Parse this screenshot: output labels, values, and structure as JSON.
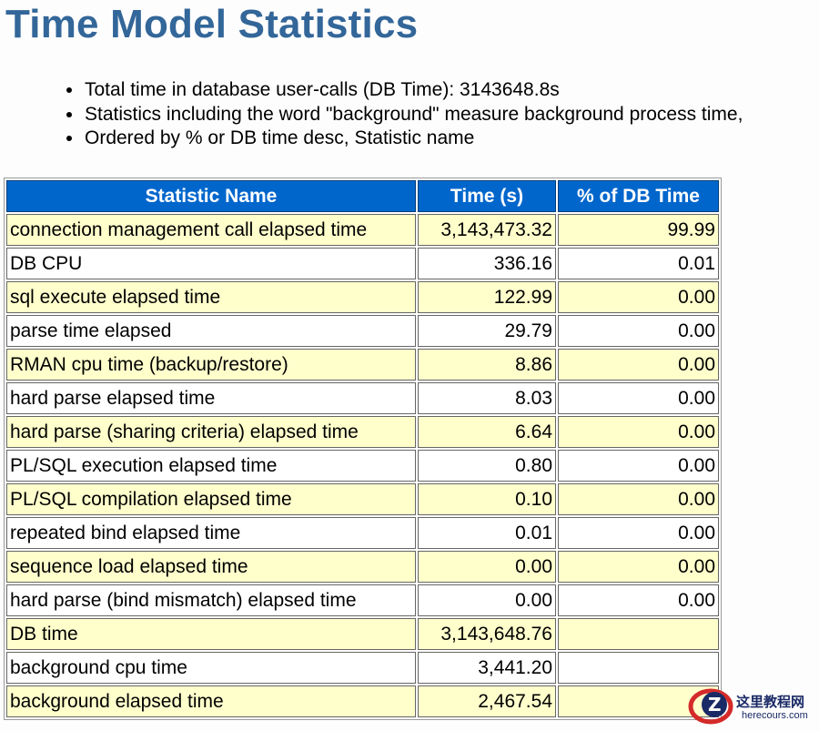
{
  "page": {
    "title": "Time Model Statistics"
  },
  "notes": [
    "Total time in database user-calls (DB Time): 3143648.8s",
    "Statistics including the word \"background\" measure background process time,",
    "Ordered by % or DB time desc, Statistic name"
  ],
  "table": {
    "headers": [
      "Statistic Name",
      "Time (s)",
      "% of DB Time"
    ],
    "rows": [
      [
        "connection management call elapsed time",
        "3,143,473.32",
        "99.99"
      ],
      [
        "DB CPU",
        "336.16",
        "0.01"
      ],
      [
        "sql execute elapsed time",
        "122.99",
        "0.00"
      ],
      [
        "parse time elapsed",
        "29.79",
        "0.00"
      ],
      [
        "RMAN cpu time (backup/restore)",
        "8.86",
        "0.00"
      ],
      [
        "hard parse elapsed time",
        "8.03",
        "0.00"
      ],
      [
        "hard parse (sharing criteria) elapsed time",
        "6.64",
        "0.00"
      ],
      [
        "PL/SQL execution elapsed time",
        "0.80",
        "0.00"
      ],
      [
        "PL/SQL compilation elapsed time",
        "0.10",
        "0.00"
      ],
      [
        "repeated bind elapsed time",
        "0.01",
        "0.00"
      ],
      [
        "sequence load elapsed time",
        "0.00",
        "0.00"
      ],
      [
        "hard parse (bind mismatch) elapsed time",
        "0.00",
        "0.00"
      ],
      [
        "DB time",
        "3,143,648.76",
        ""
      ],
      [
        "background cpu time",
        "3,441.20",
        ""
      ],
      [
        "background elapsed time",
        "2,467.54",
        ""
      ]
    ]
  },
  "watermark": {
    "text": "这里教程网",
    "url": "herecours.com"
  },
  "colors": {
    "title": "#336699",
    "header_bg": "#0066cc",
    "odd_row": "#ffffcc",
    "even_row": "#ffffff"
  }
}
